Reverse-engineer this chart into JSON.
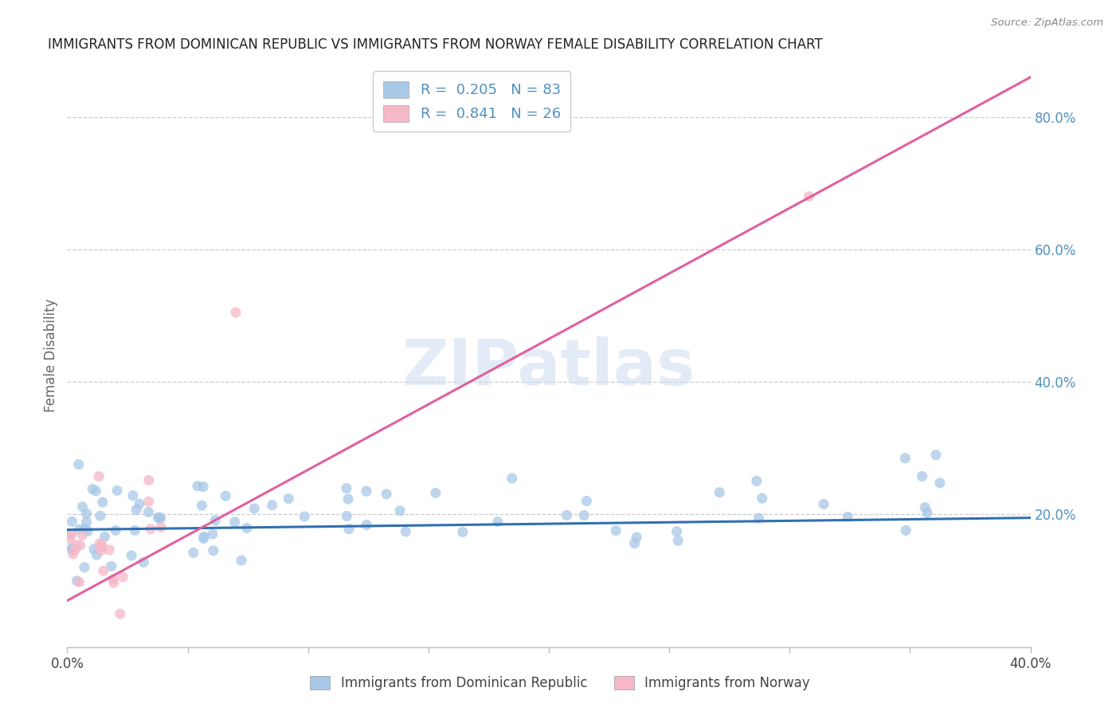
{
  "title": "IMMIGRANTS FROM DOMINICAN REPUBLIC VS IMMIGRANTS FROM NORWAY FEMALE DISABILITY CORRELATION CHART",
  "source": "Source: ZipAtlas.com",
  "ylabel": "Female Disability",
  "xlim": [
    0.0,
    0.4
  ],
  "ylim": [
    0.0,
    0.88
  ],
  "color_blue": "#a8c8e8",
  "color_pink": "#f4b8c8",
  "color_blue_line": "#3070b0",
  "color_pink_line": "#e060a0",
  "color_right_axis": "#5090c0",
  "watermark": "ZIPatlas",
  "pink_line_x0": 0.0,
  "pink_line_y0": 0.08,
  "pink_line_x1": 0.4,
  "pink_line_y1": 0.85,
  "blue_line_x0": 0.0,
  "blue_line_y0": 0.175,
  "blue_line_x1": 0.4,
  "blue_line_y1": 0.195
}
